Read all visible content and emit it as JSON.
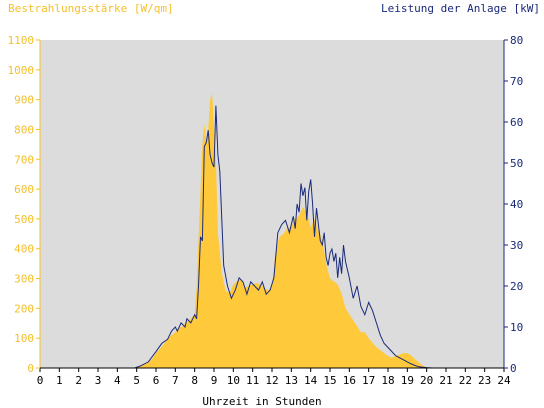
{
  "chart_data": {
    "type": "area",
    "left_title": "Bestrahlungsstärke [W/qm]",
    "right_title": "Leistung der Anlage [kW]",
    "xlabel": "Uhrzeit in Stunden",
    "xlim": [
      0,
      24
    ],
    "x_ticks": [
      "0",
      "1",
      "2",
      "3",
      "4",
      "5",
      "6",
      "7",
      "8",
      "9",
      "10",
      "11",
      "12",
      "13",
      "14",
      "15",
      "16",
      "17",
      "18",
      "19",
      "20",
      "21",
      "22",
      "23",
      "24"
    ],
    "ylim_left": [
      0,
      1100
    ],
    "yticks_left": [
      "0",
      "100",
      "200",
      "300",
      "400",
      "500",
      "600",
      "700",
      "800",
      "900",
      "1000",
      "1100"
    ],
    "ylim_right": [
      0,
      80
    ],
    "yticks_right": [
      "0",
      "10",
      "20",
      "30",
      "40",
      "50",
      "60",
      "70",
      "80"
    ],
    "grid": false,
    "colors": {
      "irradiance": "#fec93a",
      "power": "#1a2a7a",
      "plot_bg": "#dcdcdc",
      "left_axis": "#f5c02a",
      "right_axis": "#1a2a7a"
    },
    "series": [
      {
        "name": "Bestrahlungsstärke",
        "axis": "left",
        "style": "area",
        "x": [
          0,
          4.9,
          5.1,
          5.5,
          5.8,
          6.0,
          6.2,
          6.4,
          6.6,
          6.8,
          7.0,
          7.2,
          7.4,
          7.6,
          7.8,
          8.0,
          8.1,
          8.2,
          8.4,
          8.5,
          8.6,
          8.7,
          8.8,
          8.9,
          9.0,
          9.1,
          9.2,
          9.4,
          9.6,
          9.8,
          10.0,
          10.2,
          10.4,
          10.6,
          10.8,
          11.0,
          11.2,
          11.4,
          11.6,
          11.8,
          12.0,
          12.2,
          12.4,
          12.6,
          12.8,
          13.0,
          13.2,
          13.4,
          13.6,
          13.8,
          14.0,
          14.2,
          14.4,
          14.6,
          14.8,
          15.0,
          15.2,
          15.4,
          15.6,
          15.8,
          16.0,
          16.2,
          16.4,
          16.6,
          16.8,
          17.0,
          17.2,
          17.4,
          17.6,
          17.8,
          18.0,
          18.2,
          18.4,
          18.6,
          18.8,
          19.0,
          19.2,
          19.4,
          19.6,
          19.8,
          20.0,
          20.2,
          24
        ],
        "y": [
          0,
          0,
          5,
          15,
          30,
          50,
          65,
          80,
          100,
          110,
          120,
          135,
          140,
          155,
          165,
          180,
          270,
          430,
          750,
          820,
          760,
          800,
          900,
          920,
          810,
          700,
          450,
          320,
          260,
          250,
          280,
          290,
          300,
          270,
          275,
          280,
          285,
          280,
          270,
          260,
          275,
          400,
          440,
          450,
          470,
          475,
          500,
          510,
          540,
          520,
          470,
          500,
          460,
          430,
          350,
          300,
          290,
          280,
          250,
          200,
          180,
          160,
          140,
          120,
          120,
          100,
          85,
          70,
          60,
          50,
          40,
          35,
          40,
          45,
          50,
          50,
          42,
          30,
          18,
          8,
          3,
          0,
          0
        ]
      },
      {
        "name": "Leistung der Anlage",
        "axis": "right",
        "style": "line",
        "x": [
          0,
          4.9,
          5.2,
          5.6,
          6.0,
          6.3,
          6.6,
          6.8,
          7.0,
          7.1,
          7.3,
          7.5,
          7.6,
          7.8,
          8.0,
          8.1,
          8.2,
          8.3,
          8.4,
          8.5,
          8.6,
          8.7,
          8.8,
          8.9,
          9.0,
          9.1,
          9.2,
          9.3,
          9.5,
          9.7,
          9.9,
          10.1,
          10.3,
          10.5,
          10.7,
          10.9,
          11.1,
          11.3,
          11.5,
          11.7,
          11.9,
          12.1,
          12.3,
          12.5,
          12.7,
          12.9,
          13.0,
          13.1,
          13.2,
          13.3,
          13.4,
          13.5,
          13.6,
          13.7,
          13.8,
          13.9,
          14.0,
          14.1,
          14.2,
          14.3,
          14.4,
          14.5,
          14.6,
          14.7,
          14.8,
          14.9,
          15.0,
          15.1,
          15.2,
          15.3,
          15.4,
          15.5,
          15.6,
          15.7,
          15.8,
          15.9,
          16.0,
          16.2,
          16.4,
          16.6,
          16.8,
          17.0,
          17.1,
          17.2,
          17.4,
          17.6,
          17.8,
          18.0,
          18.2,
          18.4,
          18.6,
          18.8,
          19.0,
          19.2,
          19.4,
          19.6,
          19.8,
          20.0,
          20.3,
          24
        ],
        "y": [
          0,
          0,
          0.5,
          1.5,
          4,
          6,
          7,
          9,
          10,
          9,
          11,
          10,
          12,
          11,
          13,
          12,
          20,
          32,
          31,
          54,
          55,
          58,
          52,
          50,
          49,
          64,
          52,
          48,
          25,
          20,
          17,
          19,
          22,
          21,
          18,
          21,
          20,
          19,
          21,
          18,
          19,
          22,
          33,
          35,
          36,
          33,
          35,
          37,
          34,
          40,
          38,
          45,
          42,
          44,
          36,
          43,
          46,
          40,
          32,
          39,
          35,
          31,
          30,
          33,
          27,
          25,
          28,
          29,
          26,
          28,
          22,
          27,
          23,
          30,
          26,
          24,
          22,
          17,
          20,
          15,
          13,
          16,
          15,
          14,
          11,
          8,
          6,
          5,
          4,
          3,
          2.5,
          2,
          1.5,
          1,
          0.6,
          0.3,
          0.2,
          0.1,
          0,
          0
        ]
      }
    ]
  }
}
